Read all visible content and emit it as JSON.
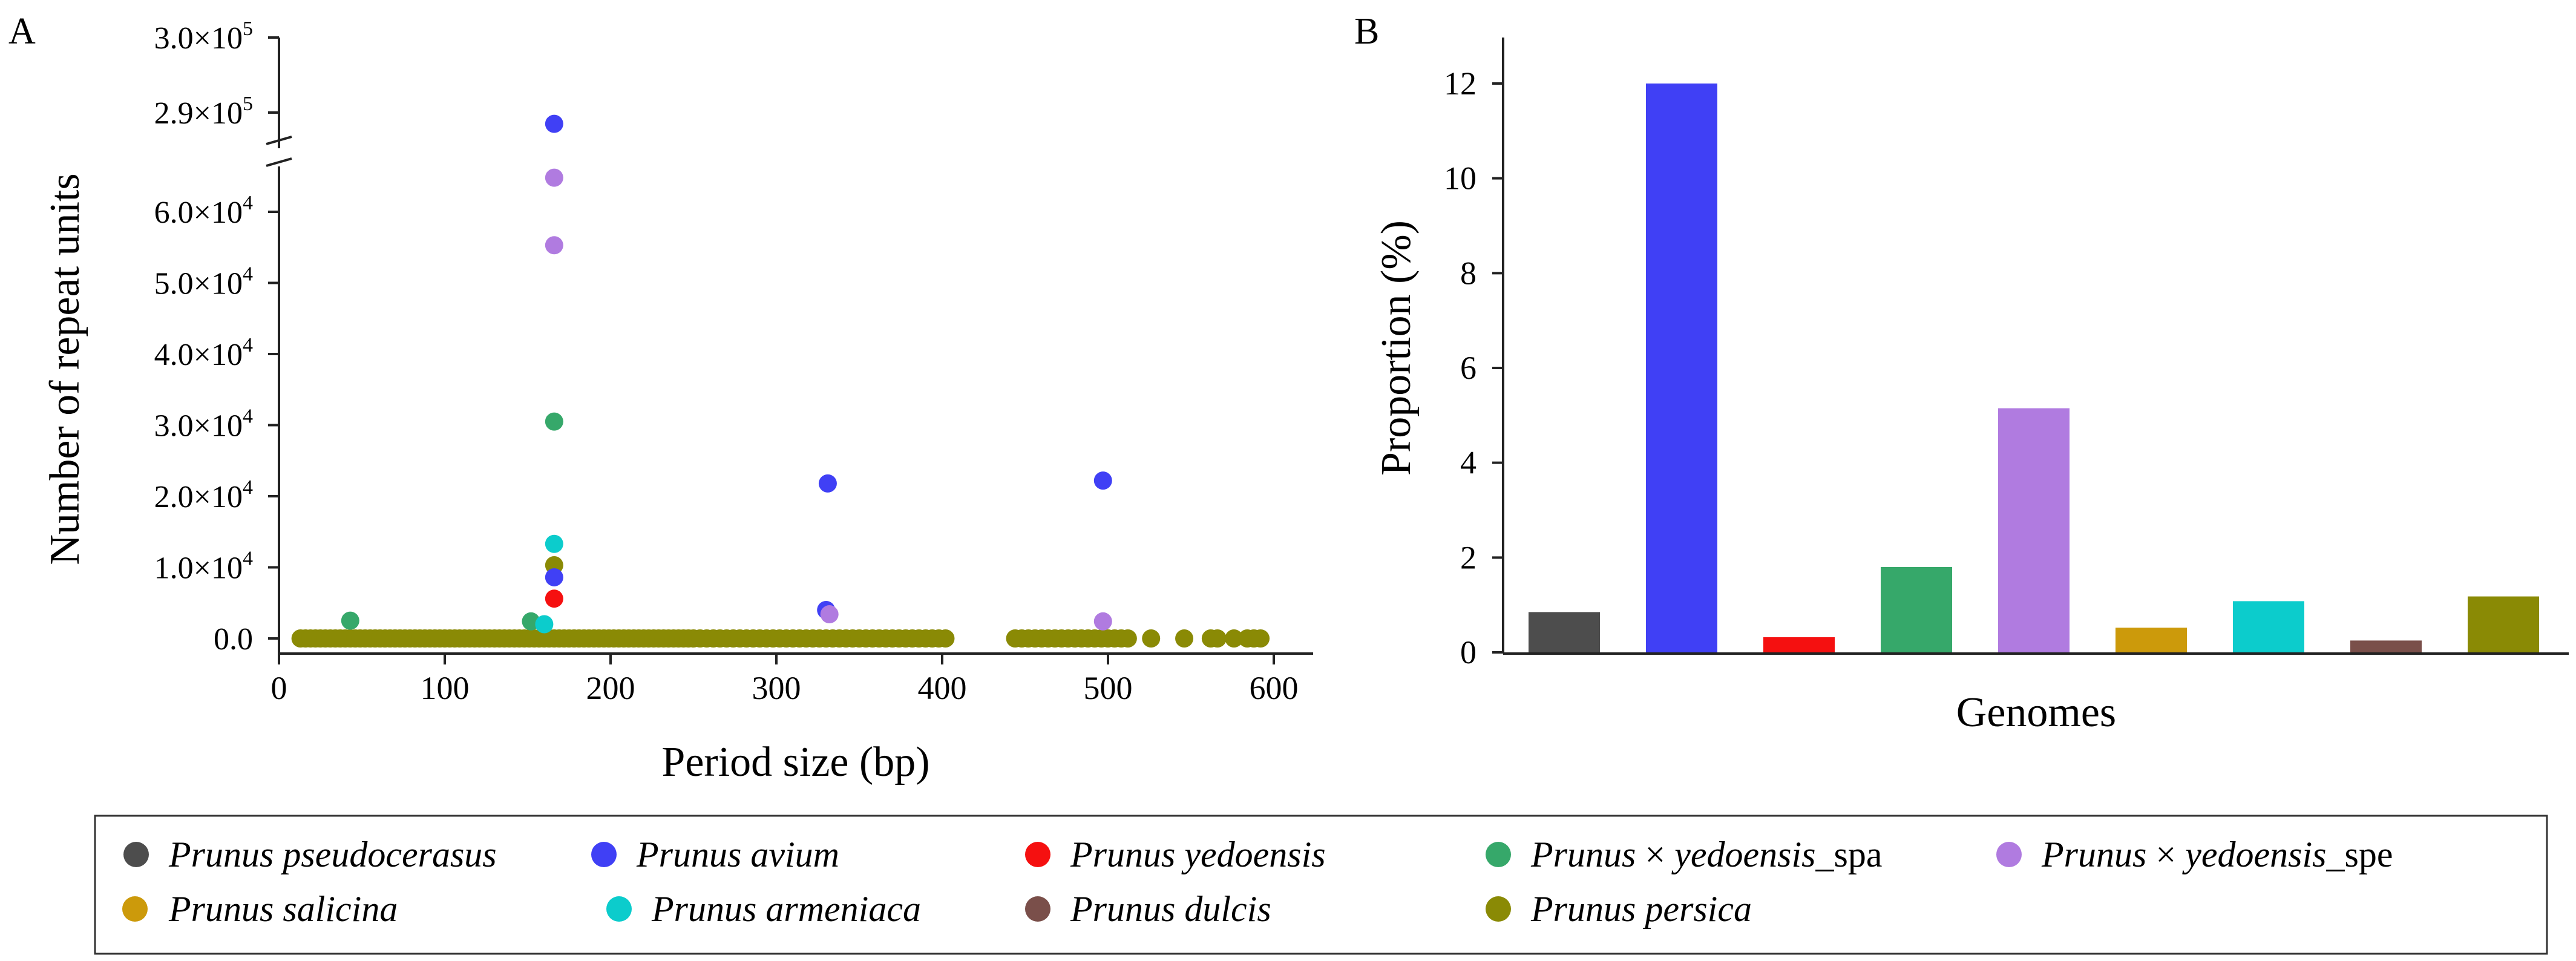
{
  "panel_a": {
    "label": "A",
    "xlabel": "Period size (bp)",
    "ylabel": "Number of repeat units",
    "xticks": [
      "0",
      "100",
      "200",
      "300",
      "400",
      "500",
      "600"
    ],
    "yticks_lower": [
      {
        "mant": "0.0",
        "exp": ""
      },
      {
        "mant": "1.0×10",
        "exp": "4"
      },
      {
        "mant": "2.0×10",
        "exp": "4"
      },
      {
        "mant": "3.0×10",
        "exp": "4"
      },
      {
        "mant": "4.0×10",
        "exp": "4"
      },
      {
        "mant": "5.0×10",
        "exp": "4"
      },
      {
        "mant": "6.0×10",
        "exp": "4"
      }
    ],
    "yticks_upper": [
      {
        "mant": "2.9×10",
        "exp": "5"
      },
      {
        "mant": "3.0×10",
        "exp": "5"
      }
    ]
  },
  "panel_b": {
    "label": "B",
    "xlabel": "Genomes",
    "ylabel": "Proportion (%)",
    "yticks": [
      "0",
      "2",
      "4",
      "6",
      "8",
      "10",
      "12"
    ]
  },
  "legend": {
    "items": [
      {
        "italic": "Prunus pseudocerasus",
        "suffix": "",
        "color": "#4d4d4d"
      },
      {
        "italic": "Prunus avium",
        "suffix": "",
        "color": "#4040f5"
      },
      {
        "italic": "Prunus yedoensis",
        "suffix": "",
        "color": "#f51010"
      },
      {
        "italic": "Prunus",
        "mid": " × ",
        "italic2": "yedoensis",
        "suffix": "_spa",
        "color": "#36a86a"
      },
      {
        "italic": "Prunus",
        "mid": " × ",
        "italic2": "yedoensis",
        "suffix": "_spe",
        "color": "#b07be0"
      },
      {
        "italic": "Prunus salicina",
        "suffix": "",
        "color": "#cc9a0b"
      },
      {
        "italic": "Prunus armeniaca",
        "suffix": "",
        "color": "#0ccccc"
      },
      {
        "italic": "Prunus dulcis",
        "suffix": "",
        "color": "#7a4f4a"
      },
      {
        "italic": "Prunus persica",
        "suffix": "",
        "color": "#8a8a05"
      }
    ]
  },
  "chart_data": [
    {
      "type": "scatter",
      "title": "",
      "xlabel": "Period size (bp)",
      "ylabel": "Number of repeat units",
      "xlim": [
        0,
        620
      ],
      "ylim_lower": [
        -2000,
        67000
      ],
      "ylim_upper": [
        287000,
        300000
      ],
      "y_axis_break": [
        67000,
        287000
      ],
      "highlight_points": [
        {
          "series": "Prunus avium",
          "x": 166,
          "y": 288500
        },
        {
          "series": "Prunus × yedoensis_spe",
          "x": 166,
          "y": 64800
        },
        {
          "series": "Prunus × yedoensis_spe",
          "x": 166,
          "y": 55300
        },
        {
          "series": "Prunus × yedoensis_spa",
          "x": 166,
          "y": 30500
        },
        {
          "series": "Prunus avium",
          "x": 331,
          "y": 21800
        },
        {
          "series": "Prunus avium",
          "x": 497,
          "y": 22200
        },
        {
          "series": "Prunus armeniaca",
          "x": 166,
          "y": 13300
        },
        {
          "series": "Prunus persica",
          "x": 166,
          "y": 10300
        },
        {
          "series": "Prunus avium",
          "x": 166,
          "y": 8600
        },
        {
          "series": "Prunus yedoensis",
          "x": 166,
          "y": 5600
        },
        {
          "series": "Prunus avium",
          "x": 330,
          "y": 4000
        },
        {
          "series": "Prunus × yedoensis_spe",
          "x": 332,
          "y": 3400
        },
        {
          "series": "Prunus × yedoensis_spe",
          "x": 497,
          "y": 2400
        },
        {
          "series": "Prunus × yedoensis_spa",
          "x": 43,
          "y": 2500
        },
        {
          "series": "Prunus × yedoensis_spa",
          "x": 152,
          "y": 2400
        },
        {
          "series": "Prunus armeniaca",
          "x": 160,
          "y": 2000
        }
      ],
      "baseline_series": "Prunus persica",
      "baseline_x": [
        13,
        16,
        19,
        22,
        25,
        28,
        31,
        34,
        37,
        40,
        43,
        46,
        49,
        52,
        55,
        58,
        61,
        64,
        67,
        70,
        73,
        76,
        79,
        82,
        85,
        88,
        91,
        94,
        97,
        100,
        103,
        106,
        109,
        112,
        115,
        118,
        121,
        124,
        127,
        130,
        133,
        136,
        139,
        142,
        145,
        148,
        151,
        154,
        157,
        160,
        163,
        166,
        169,
        172,
        175,
        178,
        181,
        184,
        187,
        190,
        193,
        196,
        199,
        202,
        205,
        208,
        211,
        214,
        217,
        220,
        223,
        226,
        229,
        232,
        235,
        238,
        241,
        244,
        247,
        250,
        254,
        258,
        262,
        266,
        270,
        274,
        278,
        282,
        286,
        290,
        294,
        298,
        302,
        306,
        310,
        314,
        318,
        322,
        326,
        330,
        334,
        338,
        342,
        346,
        350,
        354,
        358,
        362,
        366,
        370,
        374,
        378,
        382,
        386,
        390,
        394,
        398,
        402,
        444,
        448,
        452,
        456,
        460,
        464,
        468,
        472,
        476,
        480,
        484,
        488,
        492,
        496,
        500,
        504,
        508,
        512,
        526,
        546,
        562,
        566,
        576,
        584,
        588,
        592
      ],
      "baseline_y": 0
    },
    {
      "type": "bar",
      "title": "",
      "xlabel": "Genomes",
      "ylabel": "Proportion (%)",
      "ylim": [
        0,
        13
      ],
      "categories": [
        "Prunus pseudocerasus",
        "Prunus avium",
        "Prunus yedoensis",
        "Prunus × yedoensis_spa",
        "Prunus × yedoensis_spe",
        "Prunus salicina",
        "Prunus armeniaca",
        "Prunus dulcis",
        "Prunus persica"
      ],
      "values": [
        0.85,
        12.0,
        0.32,
        1.8,
        5.15,
        0.52,
        1.08,
        0.25,
        1.18
      ],
      "colors": [
        "#4d4d4d",
        "#4040f5",
        "#f51010",
        "#36a86a",
        "#b07be0",
        "#cc9a0b",
        "#0ccccc",
        "#7a4f4a",
        "#8a8a05"
      ]
    }
  ]
}
